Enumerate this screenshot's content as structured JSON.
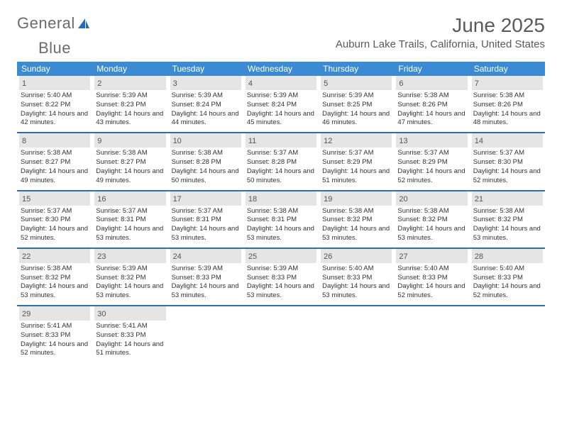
{
  "logo": {
    "text_a": "General",
    "text_b": "Blue"
  },
  "title": "June 2025",
  "location": "Auburn Lake Trails, California, United States",
  "colors": {
    "header_bg": "#3b8bd4",
    "week_divider": "#2f6ea8",
    "daynum_bg": "#e5e5e5",
    "text": "#333333",
    "muted": "#5a5a5a"
  },
  "dow": [
    "Sunday",
    "Monday",
    "Tuesday",
    "Wednesday",
    "Thursday",
    "Friday",
    "Saturday"
  ],
  "weeks": [
    [
      {
        "n": "1",
        "sr": "5:40 AM",
        "ss": "8:22 PM",
        "dl": "14 hours and 42 minutes."
      },
      {
        "n": "2",
        "sr": "5:39 AM",
        "ss": "8:23 PM",
        "dl": "14 hours and 43 minutes."
      },
      {
        "n": "3",
        "sr": "5:39 AM",
        "ss": "8:24 PM",
        "dl": "14 hours and 44 minutes."
      },
      {
        "n": "4",
        "sr": "5:39 AM",
        "ss": "8:24 PM",
        "dl": "14 hours and 45 minutes."
      },
      {
        "n": "5",
        "sr": "5:39 AM",
        "ss": "8:25 PM",
        "dl": "14 hours and 46 minutes."
      },
      {
        "n": "6",
        "sr": "5:38 AM",
        "ss": "8:26 PM",
        "dl": "14 hours and 47 minutes."
      },
      {
        "n": "7",
        "sr": "5:38 AM",
        "ss": "8:26 PM",
        "dl": "14 hours and 48 minutes."
      }
    ],
    [
      {
        "n": "8",
        "sr": "5:38 AM",
        "ss": "8:27 PM",
        "dl": "14 hours and 49 minutes."
      },
      {
        "n": "9",
        "sr": "5:38 AM",
        "ss": "8:27 PM",
        "dl": "14 hours and 49 minutes."
      },
      {
        "n": "10",
        "sr": "5:38 AM",
        "ss": "8:28 PM",
        "dl": "14 hours and 50 minutes."
      },
      {
        "n": "11",
        "sr": "5:37 AM",
        "ss": "8:28 PM",
        "dl": "14 hours and 50 minutes."
      },
      {
        "n": "12",
        "sr": "5:37 AM",
        "ss": "8:29 PM",
        "dl": "14 hours and 51 minutes."
      },
      {
        "n": "13",
        "sr": "5:37 AM",
        "ss": "8:29 PM",
        "dl": "14 hours and 52 minutes."
      },
      {
        "n": "14",
        "sr": "5:37 AM",
        "ss": "8:30 PM",
        "dl": "14 hours and 52 minutes."
      }
    ],
    [
      {
        "n": "15",
        "sr": "5:37 AM",
        "ss": "8:30 PM",
        "dl": "14 hours and 52 minutes."
      },
      {
        "n": "16",
        "sr": "5:37 AM",
        "ss": "8:31 PM",
        "dl": "14 hours and 53 minutes."
      },
      {
        "n": "17",
        "sr": "5:37 AM",
        "ss": "8:31 PM",
        "dl": "14 hours and 53 minutes."
      },
      {
        "n": "18",
        "sr": "5:38 AM",
        "ss": "8:31 PM",
        "dl": "14 hours and 53 minutes."
      },
      {
        "n": "19",
        "sr": "5:38 AM",
        "ss": "8:32 PM",
        "dl": "14 hours and 53 minutes."
      },
      {
        "n": "20",
        "sr": "5:38 AM",
        "ss": "8:32 PM",
        "dl": "14 hours and 53 minutes."
      },
      {
        "n": "21",
        "sr": "5:38 AM",
        "ss": "8:32 PM",
        "dl": "14 hours and 53 minutes."
      }
    ],
    [
      {
        "n": "22",
        "sr": "5:38 AM",
        "ss": "8:32 PM",
        "dl": "14 hours and 53 minutes."
      },
      {
        "n": "23",
        "sr": "5:39 AM",
        "ss": "8:32 PM",
        "dl": "14 hours and 53 minutes."
      },
      {
        "n": "24",
        "sr": "5:39 AM",
        "ss": "8:33 PM",
        "dl": "14 hours and 53 minutes."
      },
      {
        "n": "25",
        "sr": "5:39 AM",
        "ss": "8:33 PM",
        "dl": "14 hours and 53 minutes."
      },
      {
        "n": "26",
        "sr": "5:40 AM",
        "ss": "8:33 PM",
        "dl": "14 hours and 53 minutes."
      },
      {
        "n": "27",
        "sr": "5:40 AM",
        "ss": "8:33 PM",
        "dl": "14 hours and 52 minutes."
      },
      {
        "n": "28",
        "sr": "5:40 AM",
        "ss": "8:33 PM",
        "dl": "14 hours and 52 minutes."
      }
    ],
    [
      {
        "n": "29",
        "sr": "5:41 AM",
        "ss": "8:33 PM",
        "dl": "14 hours and 52 minutes."
      },
      {
        "n": "30",
        "sr": "5:41 AM",
        "ss": "8:33 PM",
        "dl": "14 hours and 51 minutes."
      },
      null,
      null,
      null,
      null,
      null
    ]
  ],
  "labels": {
    "sunrise": "Sunrise: ",
    "sunset": "Sunset: ",
    "daylight": "Daylight: "
  }
}
